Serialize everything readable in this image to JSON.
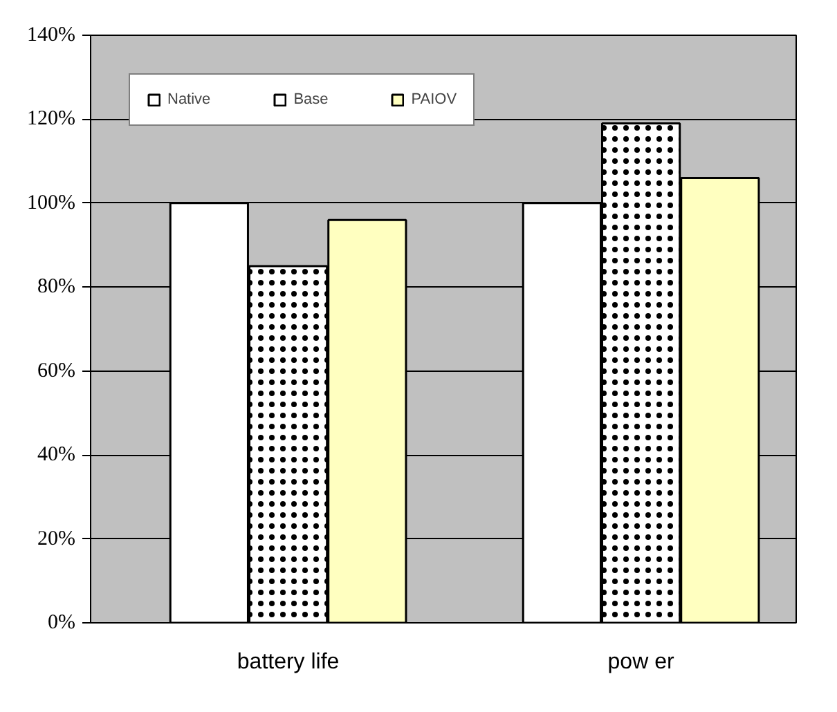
{
  "chart_data": {
    "type": "bar",
    "categories": [
      "battery life",
      "pow er"
    ],
    "series": [
      {
        "name": "Native",
        "color": "#ffffff",
        "values": [
          100,
          100
        ]
      },
      {
        "name": "Base",
        "color": "#ffffff",
        "values": [
          85,
          119
        ]
      },
      {
        "name": "PAIOV",
        "color": "#ffffc0",
        "values": [
          96,
          106
        ]
      }
    ],
    "ylim": [
      0,
      140
    ],
    "yticks": [
      {
        "value": 0,
        "label": "0%"
      },
      {
        "value": 20,
        "label": "20%"
      },
      {
        "value": 40,
        "label": "40%"
      },
      {
        "value": 60,
        "label": "60%"
      },
      {
        "value": 80,
        "label": "80%"
      },
      {
        "value": 100,
        "label": "100%"
      },
      {
        "value": 120,
        "label": "120%"
      },
      {
        "value": 140,
        "label": "140%"
      }
    ],
    "grid": "y",
    "legend": "top left"
  }
}
